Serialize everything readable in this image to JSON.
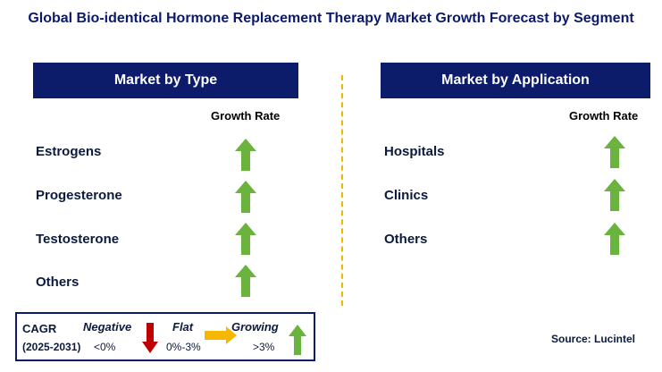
{
  "title": "Global Bio-identical Hormone Replacement Therapy Market Growth Forecast by Segment",
  "left_panel": {
    "header": "Market by Type",
    "column_label": "Growth Rate",
    "rows": [
      {
        "label": "Estrogens",
        "trend": "growing"
      },
      {
        "label": "Progesterone",
        "trend": "growing"
      },
      {
        "label": "Testosterone",
        "trend": "growing"
      },
      {
        "label": "Others",
        "trend": "growing"
      }
    ]
  },
  "right_panel": {
    "header": "Market by Application",
    "column_label": "Growth Rate",
    "rows": [
      {
        "label": "Hospitals",
        "trend": "growing"
      },
      {
        "label": "Clinics",
        "trend": "growing"
      },
      {
        "label": "Others",
        "trend": "growing"
      }
    ]
  },
  "legend": {
    "cagr_label": "CAGR",
    "period": "(2025-2031)",
    "negative_label": "Negative",
    "negative_range": "<0%",
    "flat_label": "Flat",
    "flat_range": "0%-3%",
    "growing_label": "Growing",
    "growing_range": ">3%"
  },
  "source": "Source: Lucintel",
  "colors": {
    "header_bg": "#0d1b6b",
    "growing": "#6ab33c",
    "negative": "#c00000",
    "flat": "#f5b700",
    "divider": "#f2b700"
  }
}
